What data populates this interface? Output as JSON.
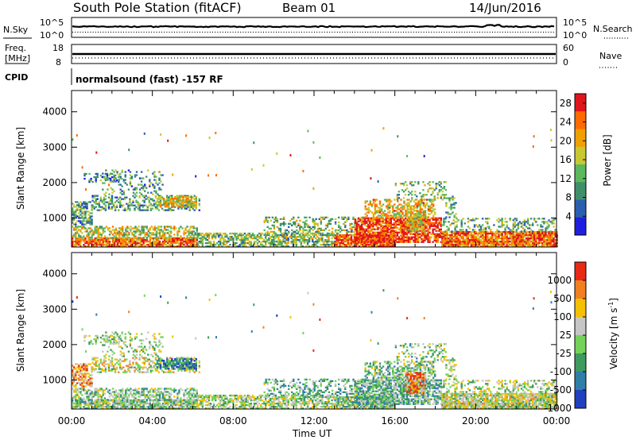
{
  "header": {
    "station": "South Pole Station (fitACF)",
    "beam": "Beam 01",
    "date": "14/Jun/2016"
  },
  "top_strips": {
    "nsky_label": "N.Sky",
    "nsearch_label": "N.Search",
    "noise_top_tick": "10^5",
    "noise_bottom_tick": "10^0",
    "freq_label_1": "Freq.",
    "freq_label_2": "[MHz]",
    "freq_ticks": [
      "18",
      "8"
    ],
    "nave_label": "Nave",
    "nave_ticks": [
      "60",
      "0"
    ],
    "cpid_label": "CPID",
    "cpid_text": "normalsound (fast) -157 RF"
  },
  "x_axis": {
    "label": "Time UT",
    "ticks": [
      "00:00",
      "04:00",
      "08:00",
      "12:00",
      "16:00",
      "20:00",
      "00:00"
    ]
  },
  "chart_data": [
    {
      "type": "heatmap",
      "title": "",
      "xlabel": "Time UT",
      "ylabel": "Slant Range [km]",
      "xlim": [
        0,
        24
      ],
      "ylim": [
        180,
        4600
      ],
      "yticks": [
        "1000",
        "2000",
        "3000",
        "4000"
      ],
      "colorbar_label": "Power [dB]",
      "colorbar_ticks": [
        "4",
        "8",
        "12",
        "16",
        "20",
        "24",
        "28"
      ],
      "colorbar_range": [
        0,
        30
      ],
      "colors": [
        "#1f1fe0",
        "#2a5fb0",
        "#3f8f6b",
        "#5cb85c",
        "#c8c832",
        "#f0a000",
        "#ff6a00",
        "#e0151c"
      ]
    },
    {
      "type": "heatmap",
      "title": "",
      "xlabel": "Time UT",
      "ylabel": "Slant Range [km]",
      "xlim": [
        0,
        24
      ],
      "ylim": [
        180,
        4600
      ],
      "yticks": [
        "1000",
        "2000",
        "3000",
        "4000"
      ],
      "colorbar_label": "Velocity [m s^-1]",
      "colorbar_ticks": [
        "1000",
        "500",
        "100",
        "25",
        "-25",
        "-100",
        "-500",
        "-1000"
      ],
      "colors": [
        "#2040c0",
        "#2e7fa8",
        "#3e9a5f",
        "#74d25a",
        "#c6c6c6",
        "#f5c000",
        "#f08020",
        "#e82a14"
      ]
    }
  ]
}
